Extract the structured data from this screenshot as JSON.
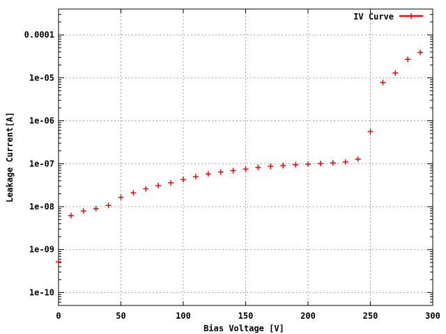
{
  "chart_data": {
    "type": "scatter",
    "title": "",
    "xlabel": "Bias Voltage [V]",
    "ylabel": "Leakage Current[A]",
    "xlim": [
      0,
      300
    ],
    "ylim": [
      5e-11,
      0.0004
    ],
    "yscale": "log",
    "grid": true,
    "legend_position": "top-right",
    "x_ticks": [
      0,
      50,
      100,
      150,
      200,
      250,
      300
    ],
    "x_tick_labels": [
      "0",
      "50",
      "100",
      "150",
      "200",
      "250",
      "300"
    ],
    "y_ticks": [
      1e-10,
      1e-09,
      1e-08,
      1e-07,
      1e-06,
      1e-05,
      0.0001
    ],
    "y_tick_labels": [
      "1e-10",
      "1e-09",
      "1e-08",
      "1e-07",
      "1e-06",
      "1e-05",
      "0.0001"
    ],
    "series": [
      {
        "name": "IV Curve",
        "color": "#ff0000",
        "marker": "plus",
        "x": [
          0,
          10,
          20,
          30,
          40,
          50,
          60,
          70,
          80,
          90,
          100,
          110,
          120,
          130,
          140,
          150,
          160,
          170,
          180,
          190,
          200,
          210,
          220,
          230,
          240,
          250,
          260,
          270,
          280,
          290
        ],
        "y": [
          5.2e-10,
          6.2e-09,
          7.9e-09,
          9e-09,
          1.07e-08,
          1.65e-08,
          2.1e-08,
          2.6e-08,
          3.1e-08,
          3.6e-08,
          4.3e-08,
          5e-08,
          5.8e-08,
          6.4e-08,
          6.9e-08,
          7.5e-08,
          8.2e-08,
          8.7e-08,
          9.1e-08,
          9.5e-08,
          9.8e-08,
          1.01e-07,
          1.05e-07,
          1.1e-07,
          1.28e-07,
          5.6e-07,
          7.8e-06,
          1.3e-05,
          2.7e-05,
          3.9e-05
        ]
      }
    ]
  }
}
